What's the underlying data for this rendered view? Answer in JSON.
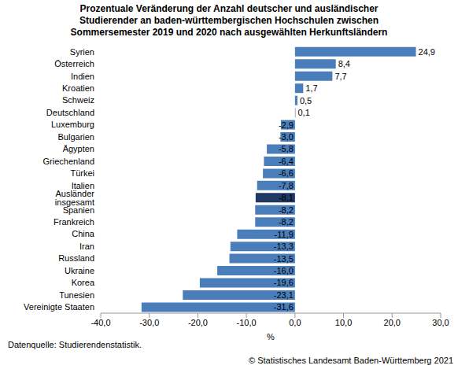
{
  "chart_data": {
    "type": "bar",
    "orientation": "horizontal",
    "title": "Prozentuale Veränderung der Anzahl deutscher und ausländischer\nStudierender an baden-württembergischen Hochschulen zwischen\nSommersemester 2019 und 2020 nach ausgewählten Herkunftsländern",
    "x_label": "%",
    "source": "Datenquelle: Studierendenstatistik.",
    "copyright": "© Statistisches Landesamt Baden-Württemberg 2021",
    "categories": [
      "Syrien",
      "Österreich",
      "Indien",
      "Kroatien",
      "Schweiz",
      "Deutschland",
      "Luxemburg",
      "Bulgarien",
      "Ägypten",
      "Griechenland",
      "Türkei",
      "Italien",
      "Ausländer insgesamt",
      "Spanien",
      "Frankreich",
      "China",
      "Iran",
      "Russland",
      "Ukraine",
      "Korea",
      "Tunesien",
      "Vereinigte Staaten"
    ],
    "values": [
      24.9,
      8.4,
      7.7,
      1.7,
      0.5,
      0.1,
      -2.9,
      -3.0,
      -5.8,
      -6.4,
      -6.6,
      -7.8,
      -8.1,
      -8.2,
      -8.2,
      -11.9,
      -13.3,
      -13.5,
      -16.0,
      -19.6,
      -23.1,
      -31.6
    ],
    "value_labels": [
      "24,9",
      "8,4",
      "7,7",
      "1,7",
      "0,5",
      "0,1",
      "-2,9",
      "-3,0",
      "-5,8",
      "-6,4",
      "-6,6",
      "-7,8",
      "-8,1",
      "-8,2",
      "-8,2",
      "-11,9",
      "-13,3",
      "-13,5",
      "-16,0",
      "-19,6",
      "-23,1",
      "-31,6"
    ],
    "colors": [
      "#4a7ebb",
      "#4a7ebb",
      "#4a7ebb",
      "#4a7ebb",
      "#4a7ebb",
      "#4a7ebb",
      "#4a7ebb",
      "#4a7ebb",
      "#4a7ebb",
      "#4a7ebb",
      "#4a7ebb",
      "#4a7ebb",
      "#1f3864",
      "#4a7ebb",
      "#4a7ebb",
      "#4a7ebb",
      "#4a7ebb",
      "#4a7ebb",
      "#4a7ebb",
      "#4a7ebb",
      "#4a7ebb",
      "#4a7ebb"
    ],
    "xlim": [
      -40,
      30
    ],
    "xticks": [
      {
        "value": -40,
        "label": "-40,0"
      },
      {
        "value": -30,
        "label": "-30,0"
      },
      {
        "value": -20,
        "label": "-20,0"
      },
      {
        "value": -10,
        "label": "-10,0"
      },
      {
        "value": 0,
        "label": "0,0"
      },
      {
        "value": 10,
        "label": "10,0"
      },
      {
        "value": 20,
        "label": "20,0"
      },
      {
        "value": 30,
        "label": "30,0"
      }
    ],
    "grid": false,
    "data_labels": true
  }
}
